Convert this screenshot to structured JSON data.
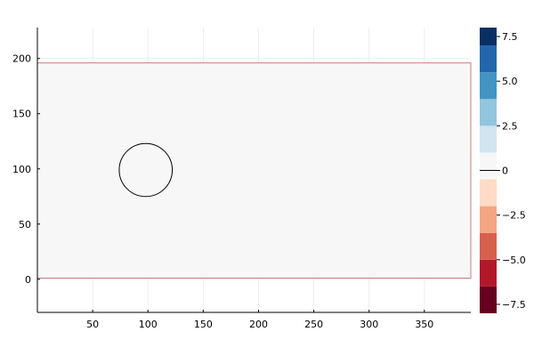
{
  "chart_data": {
    "type": "heatmap",
    "title": "",
    "xlabel": "",
    "ylabel": "",
    "xlim": [
      0,
      392
    ],
    "ylim": [
      -30,
      228
    ],
    "grid": true,
    "xticks": [
      50,
      100,
      150,
      200,
      250,
      300,
      350
    ],
    "yticks": [
      0,
      50,
      100,
      150,
      200
    ],
    "field": {
      "x_range": [
        0,
        392
      ],
      "y_range": [
        1,
        196
      ],
      "value": 0,
      "fill_color": "#f7f7f7",
      "border_color": "#c97c7c"
    },
    "circle": {
      "center": [
        98,
        99
      ],
      "radius": 24,
      "stroke_color": "#000000"
    },
    "colorbar": {
      "range": [
        -8,
        8
      ],
      "levels": [
        -8,
        -6.5,
        -5,
        -3.5,
        -2,
        -0.5,
        1,
        2.5,
        4,
        5.5,
        7,
        8
      ],
      "colors": [
        "#67001f",
        "#b2182b",
        "#d6604d",
        "#f4a582",
        "#fddbc7",
        "#f7f7f7",
        "#d1e5f0",
        "#92c5de",
        "#4393c3",
        "#2166ac",
        "#053061"
      ],
      "ticks": [
        -7.5,
        -5.0,
        -2.5,
        0,
        2.5,
        5.0,
        7.5
      ],
      "tick_labels": [
        "−7.5",
        "−5.0",
        "−2.5",
        "0",
        "2.5",
        "5.0",
        "7.5"
      ],
      "zero_line": 0
    }
  }
}
